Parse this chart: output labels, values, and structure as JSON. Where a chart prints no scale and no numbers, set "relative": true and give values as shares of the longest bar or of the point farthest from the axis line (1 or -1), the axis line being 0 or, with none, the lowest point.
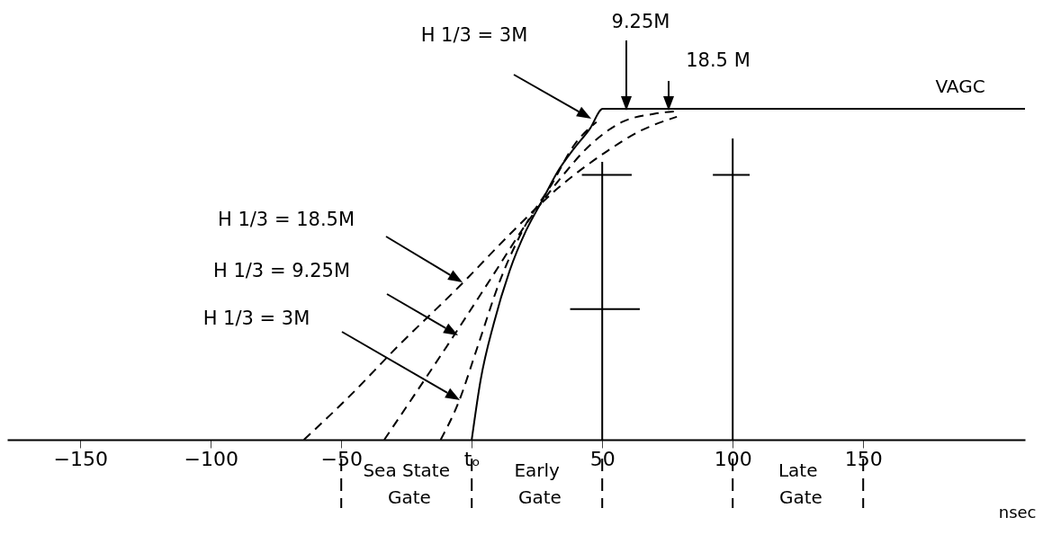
{
  "chart_data": {
    "type": "line",
    "relative": true,
    "xlabel": "nsec",
    "xlim": [
      -178,
      212
    ],
    "xticks": [
      -150,
      -100,
      -50,
      {
        "value": 0,
        "label": "tₒ"
      },
      50,
      100,
      150
    ],
    "grid": false,
    "marker": "none",
    "series": [
      {
        "name": "VAGC",
        "color": "#000000",
        "line_style": "solid",
        "x": [
          0,
          3.4,
          8.4,
          14.5,
          20.7,
          26.8,
          32.9,
          39.2,
          45.3,
          50.2,
          212
        ],
        "values": [
          0,
          0.18,
          0.35,
          0.51,
          0.63,
          0.72,
          0.81,
          0.88,
          0.94,
          1,
          1
        ]
      },
      {
        "color": "#000000",
        "line_style": "dashed",
        "x": [
          -11.9,
          -5.2,
          2.2,
          10.8,
          20.7,
          30.5,
          39.2,
          47.8
        ],
        "values": [
          0,
          0.11,
          0.28,
          0.48,
          0.65,
          0.77,
          0.89,
          0.96
        ]
      },
      {
        "color": "#000000",
        "line_style": "dashed",
        "x": [
          -33.5,
          -22.4,
          -6.4,
          8.4,
          20.7,
          33,
          45.3,
          57.6,
          70,
          78.6
        ],
        "values": [
          0,
          0.13,
          0.32,
          0.5,
          0.65,
          0.78,
          0.89,
          0.96,
          0.985,
          0.993
        ]
      },
      {
        "color": "#000000",
        "line_style": "dashed",
        "x": [
          -64.3,
          -47,
          -28.6,
          -3.9,
          14.5,
          33,
          51.5,
          63.8,
          78.6
        ],
        "values": [
          0,
          0.13,
          0.28,
          0.47,
          0.62,
          0.76,
          0.87,
          0.93,
          0.976
        ]
      },
      {
        "color": "#000000",
        "line_style": "solid",
        "x": [
          50,
          50
        ],
        "values": [
          0,
          0.84
        ]
      },
      {
        "color": "#000000",
        "line_style": "solid",
        "x": [
          100,
          100
        ],
        "values": [
          0,
          0.91
        ]
      },
      {
        "color": "#000000",
        "line_style": "solid",
        "x": [
          42.2,
          61.3
        ],
        "values": [
          0.8,
          0.8
        ]
      },
      {
        "color": "#000000",
        "line_style": "solid",
        "x": [
          37.7,
          64.4
        ],
        "values": [
          0.395,
          0.395
        ]
      },
      {
        "color": "#000000",
        "line_style": "solid",
        "x": [
          92.4,
          106.5
        ],
        "values": [
          0.8,
          0.8
        ]
      }
    ],
    "annotations": [
      "H 1/3 = 3M",
      "9.25M",
      "18.5 M",
      "H 1/3 = 18.5M",
      "H 1/3 = 9.25M",
      "H 1/3 = 3M",
      "Sea State Gate",
      "Early Gate",
      "Late Gate"
    ]
  }
}
